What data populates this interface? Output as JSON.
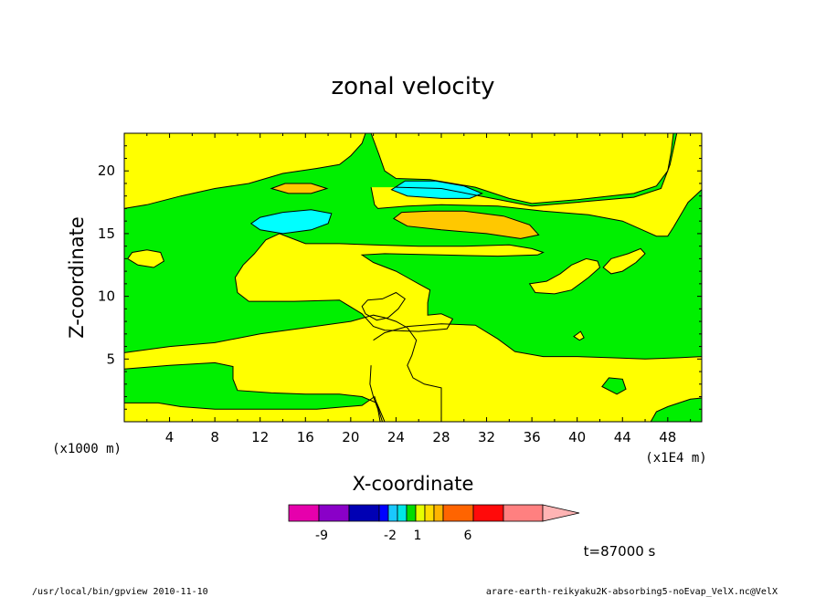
{
  "chart_data": {
    "type": "contour",
    "title": "zonal velocity",
    "xlabel": "X-coordinate",
    "ylabel": "Z-coordinate",
    "x_unit_label": "(x1E4 m)",
    "y_unit_label": "(x1000 m)",
    "xlim": [
      0,
      51
    ],
    "ylim": [
      0,
      23
    ],
    "x_ticks": [
      "4",
      "8",
      "12",
      "16",
      "20",
      "24",
      "28",
      "32",
      "36",
      "40",
      "44",
      "48"
    ],
    "y_ticks": [
      "5",
      "10",
      "15",
      "20"
    ],
    "time_label": "t=87000 s",
    "colorbar": {
      "colors": [
        "#e600ac",
        "#8a00c8",
        "#0000b4",
        "#0000ff",
        "#1ac8ff",
        "#00e6e6",
        "#00dc00",
        "#e6ff00",
        "#ffdc00",
        "#ffb400",
        "#ff6400",
        "#ff0a0a",
        "#ff8080",
        "#ffb4b4"
      ],
      "labels": [
        "-9",
        "-2",
        "1",
        "6"
      ]
    },
    "field": {
      "background_level": "0 to 1 (green)",
      "levels": {
        "green": "#00f000",
        "yellow": "#ffff00",
        "orange": "#ffc800",
        "cyan": "#00ffff"
      },
      "regions": [
        {
          "level": "yellow",
          "polygon": [
            [
              0,
              17
            ],
            [
              2,
              17.3
            ],
            [
              5,
              18
            ],
            [
              8,
              18.6
            ],
            [
              11,
              19
            ],
            [
              14,
              19.8
            ],
            [
              17,
              20.2
            ],
            [
              19,
              20.5
            ],
            [
              20,
              21.2
            ],
            [
              21,
              22.2
            ],
            [
              21.3,
              23
            ],
            [
              0,
              23
            ]
          ]
        },
        {
          "level": "yellow",
          "polygon": [
            [
              21.8,
              23
            ],
            [
              22.5,
              21.3
            ],
            [
              23,
              20
            ],
            [
              24,
              19.4
            ],
            [
              27,
              19.3
            ],
            [
              31,
              18.7
            ],
            [
              34,
              17.8
            ],
            [
              36,
              17.4
            ],
            [
              40,
              17.7
            ],
            [
              45,
              18.2
            ],
            [
              47,
              18.8
            ],
            [
              48,
              20
            ],
            [
              48.3,
              21.5
            ],
            [
              48.5,
              23
            ]
          ]
        },
        {
          "level": "yellow",
          "polygon": [
            [
              21.8,
              18.7
            ],
            [
              22.1,
              17.3
            ],
            [
              22.4,
              17
            ],
            [
              25,
              17.2
            ],
            [
              28,
              17.3
            ],
            [
              33,
              17.2
            ],
            [
              37,
              16.8
            ],
            [
              41,
              16.5
            ],
            [
              44,
              16
            ],
            [
              46,
              15.2
            ],
            [
              47,
              14.8
            ],
            [
              48,
              14.8
            ],
            [
              48.5,
              15.5
            ],
            [
              49.8,
              17.5
            ],
            [
              51,
              18.5
            ],
            [
              51,
              23
            ],
            [
              48.8,
              23
            ],
            [
              48.2,
              20.5
            ],
            [
              47.4,
              18.6
            ],
            [
              45,
              17.9
            ],
            [
              40,
              17.5
            ],
            [
              36,
              17.2
            ],
            [
              32,
              17.9
            ],
            [
              28,
              18.6
            ],
            [
              24,
              18.7
            ]
          ]
        },
        {
          "level": "yellow",
          "polygon": [
            [
              13.7,
              15
            ],
            [
              16,
              14.2
            ],
            [
              19,
              14.2
            ],
            [
              22,
              14.1
            ],
            [
              26,
              14
            ],
            [
              30,
              14
            ],
            [
              34,
              14.1
            ],
            [
              36,
              13.8
            ],
            [
              37,
              13.5
            ],
            [
              36.5,
              13.3
            ],
            [
              33,
              13.2
            ],
            [
              28,
              13.3
            ],
            [
              23,
              13.4
            ],
            [
              21,
              13.3
            ],
            [
              22,
              12.7
            ],
            [
              24,
              12
            ],
            [
              25,
              11.5
            ],
            [
              26,
              11
            ],
            [
              27,
              10.5
            ],
            [
              26.8,
              9.5
            ],
            [
              26.8,
              8.5
            ],
            [
              28,
              8.6
            ],
            [
              29,
              8.2
            ],
            [
              28.5,
              7.4
            ],
            [
              26,
              7.2
            ],
            [
              23,
              7.3
            ],
            [
              22,
              7.6
            ],
            [
              21,
              8.6
            ],
            [
              19,
              9.7
            ],
            [
              15,
              9.6
            ],
            [
              11,
              9.6
            ],
            [
              10,
              10.3
            ],
            [
              9.8,
              11.5
            ],
            [
              10.5,
              12.5
            ],
            [
              11.5,
              13.4
            ],
            [
              12.5,
              14.5
            ]
          ]
        },
        {
          "level": "yellow",
          "polygon": [
            [
              21.5,
              9.7
            ],
            [
              22.8,
              9.8
            ],
            [
              24,
              10.3
            ],
            [
              24.8,
              9.8
            ],
            [
              24.2,
              9
            ],
            [
              23.3,
              8.3
            ],
            [
              22.3,
              8.1
            ],
            [
              21.3,
              8.6
            ],
            [
              21,
              9.2
            ]
          ]
        },
        {
          "level": "yellow",
          "polygon": [
            [
              0,
              0
            ],
            [
              0,
              1.5
            ],
            [
              3,
              1.5
            ],
            [
              5,
              1.2
            ],
            [
              8,
              1
            ],
            [
              12,
              1
            ],
            [
              17,
              1
            ],
            [
              21,
              1.3
            ],
            [
              22.1,
              2
            ],
            [
              22.8,
              0
            ]
          ]
        },
        {
          "level": "yellow",
          "polygon": [
            [
              0,
              5.5
            ],
            [
              4,
              6
            ],
            [
              8,
              6.3
            ],
            [
              12,
              7
            ],
            [
              16,
              7.5
            ],
            [
              20,
              8
            ],
            [
              22,
              8.5
            ],
            [
              23,
              8.3
            ],
            [
              24,
              8
            ],
            [
              25,
              7.5
            ],
            [
              25.8,
              6.5
            ],
            [
              25.4,
              5.3
            ],
            [
              25,
              4.5
            ],
            [
              25.5,
              3.5
            ],
            [
              26.5,
              3
            ],
            [
              28,
              2.7
            ],
            [
              28,
              0
            ],
            [
              23,
              0
            ],
            [
              22.3,
              1.5
            ],
            [
              21,
              2
            ],
            [
              19,
              2.2
            ],
            [
              16,
              2.2
            ],
            [
              13,
              2.3
            ],
            [
              10,
              2.5
            ],
            [
              9.6,
              3.4
            ],
            [
              9.6,
              4.4
            ],
            [
              8,
              4.7
            ],
            [
              4,
              4.5
            ],
            [
              0,
              4.2
            ]
          ]
        },
        {
          "level": "yellow",
          "polygon": [
            [
              22,
              6.5
            ],
            [
              23,
              7.1
            ],
            [
              25,
              7.6
            ],
            [
              28,
              7.8
            ],
            [
              31,
              7.7
            ],
            [
              33,
              6.6
            ],
            [
              34.5,
              5.6
            ],
            [
              37,
              5.2
            ],
            [
              40,
              5.2
            ],
            [
              43,
              5.1
            ],
            [
              46,
              5
            ],
            [
              49,
              5.1
            ],
            [
              51,
              5.2
            ],
            [
              51,
              1.9
            ],
            [
              50,
              1.8
            ],
            [
              49,
              1.5
            ],
            [
              48,
              1.2
            ],
            [
              47,
              0.8
            ],
            [
              46.5,
              0
            ],
            [
              22.6,
              0
            ],
            [
              22.4,
              1
            ],
            [
              22,
              2
            ],
            [
              21.7,
              3
            ],
            [
              21.8,
              4.5
            ]
          ]
        },
        {
          "level": "yellow",
          "polygon": [
            [
              0.3,
              13
            ],
            [
              1.2,
              12.5
            ],
            [
              2.6,
              12.3
            ],
            [
              3.5,
              12.8
            ],
            [
              3.2,
              13.5
            ],
            [
              2,
              13.7
            ],
            [
              0.7,
              13.5
            ]
          ]
        },
        {
          "level": "yellow",
          "polygon": [
            [
              35.8,
              11
            ],
            [
              37.3,
              11.2
            ],
            [
              38.5,
              11.8
            ],
            [
              39.5,
              12.5
            ],
            [
              40.8,
              13
            ],
            [
              41.8,
              12.8
            ],
            [
              42,
              12.3
            ],
            [
              41,
              11.5
            ],
            [
              39.5,
              10.5
            ],
            [
              38,
              10.2
            ],
            [
              36.3,
              10.3
            ]
          ]
        },
        {
          "level": "yellow",
          "polygon": [
            [
              42.3,
              12.3
            ],
            [
              43,
              11.8
            ],
            [
              44,
              12
            ],
            [
              45.2,
              12.7
            ],
            [
              46,
              13.4
            ],
            [
              45.6,
              13.8
            ],
            [
              44.5,
              13.4
            ],
            [
              43,
              13
            ]
          ]
        },
        {
          "level": "yellow",
          "polygon": [
            [
              39.7,
              6.8
            ],
            [
              40.2,
              6.5
            ],
            [
              40.6,
              6.7
            ],
            [
              40.3,
              7.2
            ]
          ]
        },
        {
          "level": "green",
          "polygon": [
            [
              42.2,
              2.8
            ],
            [
              43.5,
              2.2
            ],
            [
              44.3,
              2.6
            ],
            [
              44,
              3.4
            ],
            [
              42.8,
              3.5
            ]
          ]
        },
        {
          "level": "orange",
          "polygon": [
            [
              13,
              18.6
            ],
            [
              14.5,
              18.2
            ],
            [
              16.5,
              18.2
            ],
            [
              17.9,
              18.6
            ],
            [
              16.5,
              19
            ],
            [
              14.2,
              19
            ]
          ]
        },
        {
          "level": "cyan",
          "polygon": [
            [
              23.6,
              18.5
            ],
            [
              25,
              18
            ],
            [
              28,
              17.8
            ],
            [
              30.5,
              17.8
            ],
            [
              31.6,
              18.2
            ],
            [
              30,
              18.8
            ],
            [
              27.5,
              19.2
            ],
            [
              24.8,
              19.2
            ]
          ]
        },
        {
          "level": "cyan",
          "polygon": [
            [
              11.2,
              15.8
            ],
            [
              12,
              15.3
            ],
            [
              14,
              15
            ],
            [
              16.5,
              15.3
            ],
            [
              18,
              15.8
            ],
            [
              18.3,
              16.6
            ],
            [
              16.5,
              16.9
            ],
            [
              14,
              16.7
            ],
            [
              12,
              16.3
            ]
          ]
        },
        {
          "level": "orange",
          "polygon": [
            [
              23.8,
              16.2
            ],
            [
              25,
              15.6
            ],
            [
              28,
              15.3
            ],
            [
              32,
              15
            ],
            [
              35,
              14.6
            ],
            [
              36.6,
              14.9
            ],
            [
              35.8,
              15.7
            ],
            [
              33.5,
              16.4
            ],
            [
              30,
              16.8
            ],
            [
              27,
              16.8
            ],
            [
              24.5,
              16.7
            ]
          ]
        }
      ]
    }
  },
  "footer": {
    "left": "/usr/local/bin/gpview  2010-11-10",
    "right": "arare-earth-reikyaku2K-absorbing5-noEvap_VelX.nc@VelX"
  }
}
